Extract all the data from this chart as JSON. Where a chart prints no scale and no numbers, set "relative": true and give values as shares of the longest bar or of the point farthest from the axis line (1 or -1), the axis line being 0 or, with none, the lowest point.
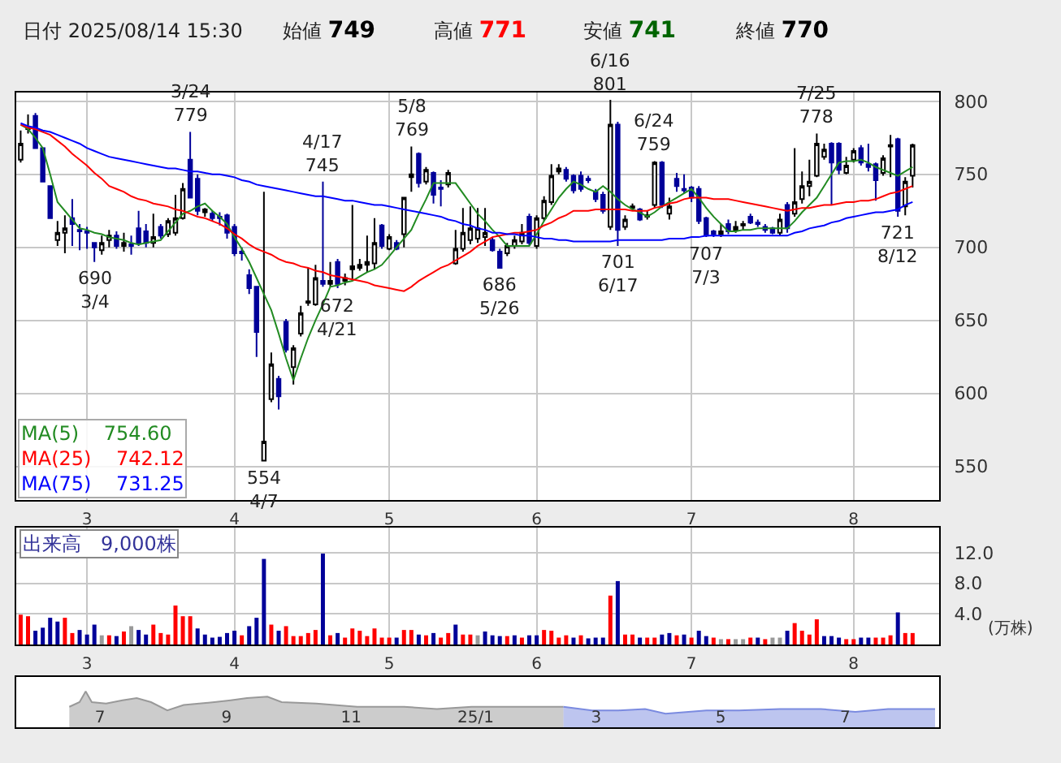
{
  "chart_data": [
    {
      "type": "candlestick",
      "categories": [
        null,
        null,
        null,
        null,
        null,
        null,
        null,
        null,
        null,
        "3",
        null,
        null,
        null,
        null,
        null,
        null,
        null,
        null,
        null,
        null,
        null,
        null,
        null,
        null,
        null,
        null,
        null,
        null,
        null,
        "4",
        null,
        null,
        null,
        null,
        null,
        null,
        null,
        null,
        null,
        null,
        null,
        null,
        null,
        null,
        null,
        null,
        null,
        null,
        null,
        null,
        "5",
        null,
        null,
        null,
        null,
        null,
        null,
        null,
        null,
        null,
        null,
        null,
        null,
        null,
        null,
        null,
        null,
        null,
        null,
        null,
        "6",
        null,
        null,
        null,
        null,
        null,
        null,
        null,
        null,
        null,
        null,
        null,
        null,
        null,
        null,
        null,
        null,
        null,
        null,
        null,
        null,
        "7",
        null,
        null,
        null,
        null,
        null,
        null,
        null,
        null,
        null,
        null,
        null,
        null,
        null,
        null,
        null,
        null,
        null,
        null,
        null,
        null,
        null,
        "8",
        null,
        null,
        null,
        null,
        null,
        null,
        null,
        null
      ],
      "ohlc": [
        [
          760,
          780,
          758,
          771
        ],
        [
          781,
          791,
          778,
          782
        ],
        [
          790,
          792,
          768,
          768
        ],
        [
          768,
          768,
          745,
          745
        ],
        [
          742,
          742,
          720,
          720
        ],
        [
          705,
          718,
          701,
          710
        ],
        [
          710,
          722,
          696,
          713
        ],
        [
          720,
          733,
          701,
          716
        ],
        [
          712,
          716,
          698,
          711
        ],
        [
          711,
          714,
          699,
          710
        ],
        [
          703,
          703,
          690,
          700
        ],
        [
          698,
          708,
          695,
          703
        ],
        [
          705,
          712,
          700,
          708
        ],
        [
          708,
          711,
          699,
          701
        ],
        [
          701,
          710,
          697,
          703
        ],
        [
          702,
          708,
          695,
          701
        ],
        [
          713,
          725,
          701,
          703
        ],
        [
          711,
          716,
          700,
          703
        ],
        [
          703,
          723,
          700,
          707
        ],
        [
          714,
          716,
          706,
          708
        ],
        [
          709,
          720,
          707,
          718
        ],
        [
          710,
          736,
          708,
          720
        ],
        [
          720,
          744,
          719,
          740
        ],
        [
          760,
          779,
          734,
          734
        ],
        [
          747,
          750,
          722,
          725
        ],
        [
          724,
          727,
          721,
          726
        ],
        [
          723,
          725,
          718,
          720
        ],
        [
          721,
          724,
          715,
          720
        ],
        [
          722,
          723,
          706,
          710
        ],
        [
          714,
          716,
          694,
          696
        ],
        [
          697,
          700,
          691,
          696
        ],
        [
          681,
          685,
          668,
          672
        ],
        [
          673,
          673,
          625,
          642
        ],
        [
          554,
          738,
          554,
          567
        ],
        [
          596,
          628,
          594,
          620
        ],
        [
          610,
          612,
          589,
          598
        ],
        [
          649,
          651,
          628,
          630
        ],
        [
          618,
          633,
          606,
          631
        ],
        [
          641,
          660,
          639,
          655
        ],
        [
          662,
          686,
          660,
          663
        ],
        [
          661,
          688,
          660,
          679
        ],
        [
          677,
          745,
          673,
          675
        ],
        [
          675,
          690,
          673,
          677
        ],
        [
          690,
          692,
          672,
          675
        ],
        [
          677,
          682,
          674,
          679
        ],
        [
          685,
          729,
          677,
          687
        ],
        [
          686,
          692,
          684,
          688
        ],
        [
          688,
          708,
          683,
          690
        ],
        [
          689,
          720,
          685,
          703
        ],
        [
          715,
          716,
          699,
          701
        ],
        [
          699,
          709,
          698,
          707
        ],
        [
          703,
          705,
          698,
          699
        ],
        [
          709,
          734,
          700,
          734
        ],
        [
          748,
          769,
          738,
          750
        ],
        [
          764,
          765,
          741,
          744
        ],
        [
          745,
          755,
          743,
          753
        ],
        [
          751,
          752,
          730,
          736
        ],
        [
          741,
          746,
          728,
          740
        ],
        [
          743,
          753,
          741,
          751
        ],
        [
          689,
          712,
          688,
          699
        ],
        [
          699,
          727,
          697,
          710
        ],
        [
          705,
          728,
          702,
          713
        ],
        [
          706,
          727,
          703,
          713
        ],
        [
          707,
          727,
          701,
          710
        ],
        [
          705,
          707,
          697,
          698
        ],
        [
          697,
          699,
          686,
          686
        ],
        [
          696,
          703,
          694,
          701
        ],
        [
          701,
          708,
          699,
          705
        ],
        [
          704,
          716,
          702,
          710
        ],
        [
          721,
          723,
          701,
          703
        ],
        [
          701,
          722,
          699,
          720
        ],
        [
          720,
          735,
          718,
          732
        ],
        [
          731,
          757,
          729,
          749
        ],
        [
          752,
          757,
          750,
          754
        ],
        [
          753,
          755,
          745,
          747
        ],
        [
          749,
          750,
          737,
          739
        ],
        [
          749,
          752,
          738,
          740
        ],
        [
          747,
          749,
          744,
          746
        ],
        [
          738,
          740,
          731,
          733
        ],
        [
          736,
          738,
          723,
          725
        ],
        [
          714,
          801,
          712,
          784
        ],
        [
          784,
          786,
          701,
          712
        ],
        [
          714,
          722,
          712,
          719
        ],
        [
          727,
          730,
          725,
          728
        ],
        [
          726,
          727,
          718,
          719
        ],
        [
          721,
          725,
          719,
          722
        ],
        [
          729,
          759,
          727,
          758
        ],
        [
          758,
          759,
          727,
          729
        ],
        [
          723,
          734,
          719,
          728
        ],
        [
          747,
          751,
          738,
          742
        ],
        [
          740,
          750,
          737,
          739
        ],
        [
          741,
          742,
          731,
          734
        ],
        [
          740,
          742,
          716,
          718
        ],
        [
          720,
          721,
          707,
          708
        ],
        [
          711,
          712,
          707,
          709
        ],
        [
          709,
          716,
          707,
          711
        ],
        [
          716,
          719,
          709,
          711
        ],
        [
          712,
          718,
          710,
          714
        ],
        [
          715,
          718,
          712,
          716
        ],
        [
          721,
          723,
          716,
          717
        ],
        [
          717,
          719,
          714,
          716
        ],
        [
          714,
          716,
          710,
          712
        ],
        [
          713,
          714,
          709,
          710
        ],
        [
          710,
          723,
          708,
          719
        ],
        [
          729,
          731,
          710,
          713
        ],
        [
          723,
          768,
          721,
          731
        ],
        [
          733,
          752,
          730,
          742
        ],
        [
          742,
          760,
          735,
          745
        ],
        [
          749,
          778,
          748,
          771
        ],
        [
          762,
          771,
          760,
          767
        ],
        [
          771,
          772,
          729,
          758
        ],
        [
          771,
          772,
          750,
          753
        ],
        [
          751,
          762,
          750,
          756
        ],
        [
          760,
          768,
          758,
          766
        ],
        [
          768,
          770,
          756,
          758
        ],
        [
          757,
          771,
          752,
          755
        ],
        [
          757,
          758,
          732,
          746
        ],
        [
          751,
          763,
          749,
          761
        ],
        [
          769,
          777,
          748,
          770
        ],
        [
          774,
          775,
          721,
          725
        ],
        [
          728,
          748,
          722,
          745
        ],
        [
          749,
          771,
          741,
          770
        ]
      ],
      "series": [
        {
          "name": "MA(5) 754.60",
          "type": "line",
          "color": "#228b22",
          "values": [
            784,
            781,
            775,
            768,
            750,
            731,
            725,
            719,
            713,
            712,
            710,
            709,
            707,
            706,
            705,
            703,
            702,
            703,
            704,
            705,
            711,
            717,
            723,
            725,
            728,
            730,
            725,
            721,
            716,
            707,
            699,
            690,
            679,
            668,
            657,
            641,
            624,
            609,
            624,
            638,
            650,
            661,
            673,
            674,
            676,
            677,
            680,
            683,
            685,
            688,
            694,
            700,
            706,
            712,
            723,
            733,
            744,
            744,
            744,
            744,
            737,
            730,
            723,
            718,
            712,
            707,
            701,
            701,
            701,
            701,
            709,
            718,
            726,
            734,
            740,
            745,
            743,
            740,
            738,
            742,
            738,
            733,
            729,
            726,
            724,
            721,
            724,
            728,
            731,
            734,
            737,
            740,
            734,
            727,
            721,
            716,
            711,
            711,
            712,
            712,
            713,
            713,
            713,
            713,
            713,
            718,
            724,
            729,
            734,
            742,
            750,
            758,
            759,
            759,
            760,
            758,
            755,
            753,
            751,
            749,
            752,
            755
          ]
        },
        {
          "name": "MA(25) 742.12",
          "type": "line",
          "color": "#ff0000",
          "values": [
            784,
            782,
            781,
            779,
            777,
            773,
            769,
            764,
            760,
            756,
            751,
            747,
            742,
            740,
            738,
            735,
            733,
            732,
            730,
            729,
            728,
            726,
            725,
            723,
            721,
            720,
            718,
            716,
            713,
            709,
            706,
            702,
            699,
            697,
            695,
            692,
            690,
            689,
            687,
            686,
            684,
            683,
            681,
            680,
            679,
            678,
            677,
            676,
            674,
            673,
            672,
            671,
            670,
            673,
            677,
            680,
            683,
            686,
            688,
            691,
            694,
            697,
            701,
            704,
            707,
            708,
            709,
            710,
            710,
            711,
            712,
            715,
            717,
            720,
            722,
            725,
            725,
            725,
            726,
            726,
            726,
            726,
            726,
            725,
            725,
            725,
            727,
            728,
            730,
            731,
            733,
            734,
            734,
            734,
            733,
            733,
            733,
            732,
            731,
            730,
            729,
            728,
            727,
            726,
            725,
            726,
            727,
            727,
            728,
            729,
            729,
            730,
            731,
            731,
            732,
            732,
            733,
            735,
            737,
            738,
            740,
            742
          ]
        },
        {
          "name": "MA(75) 731.25",
          "type": "line",
          "color": "#0000ff",
          "values": [
            785,
            783,
            782,
            780,
            779,
            777,
            775,
            773,
            771,
            768,
            766,
            764,
            762,
            761,
            760,
            759,
            758,
            757,
            756,
            755,
            754,
            754,
            753,
            752,
            752,
            751,
            750,
            750,
            749,
            748,
            746,
            745,
            743,
            742,
            741,
            740,
            739,
            738,
            737,
            736,
            735,
            735,
            734,
            733,
            732,
            732,
            731,
            730,
            729,
            729,
            728,
            727,
            726,
            725,
            724,
            723,
            722,
            721,
            719,
            718,
            716,
            715,
            713,
            712,
            710,
            710,
            709,
            709,
            708,
            708,
            707,
            706,
            706,
            705,
            705,
            704,
            704,
            704,
            704,
            704,
            704,
            705,
            705,
            705,
            705,
            705,
            705,
            705,
            706,
            706,
            706,
            707,
            707,
            708,
            708,
            708,
            708,
            708,
            708,
            708,
            708,
            708,
            708,
            708,
            708,
            710,
            711,
            713,
            714,
            715,
            717,
            718,
            720,
            721,
            722,
            723,
            724,
            724,
            725,
            726,
            729,
            731
          ]
        }
      ],
      "ylim": [
        527,
        806
      ],
      "yticks": [
        550,
        600,
        650,
        700,
        750,
        800
      ],
      "grid": true,
      "legend": "bottom left",
      "annotations": [
        "日付 2025/08/14 15:30",
        "始値 749",
        "高値 771",
        "安値 741",
        "終値 770",
        {
          "text": "3/24\n779",
          "y": 779
        },
        {
          "text": "690\n3/4",
          "y": 690
        },
        {
          "text": "554\n4/7",
          "y": 554
        },
        {
          "text": "4/17\n745",
          "y": 745
        },
        {
          "text": "672\n4/21",
          "y": 672
        },
        {
          "text": "5/8\n769",
          "y": 769
        },
        {
          "text": "686\n5/26",
          "y": 686
        },
        {
          "text": "6/16\n801",
          "y": 801
        },
        {
          "text": "701\n6/17",
          "y": 701
        },
        {
          "text": "6/24\n759",
          "y": 759
        },
        {
          "text": "707\n7/3",
          "y": 707
        },
        {
          "text": "7/25\n778",
          "y": 778
        },
        {
          "text": "721\n8/12",
          "y": 721
        }
      ]
    },
    {
      "type": "bar",
      "categories": [
        null,
        null,
        null,
        null,
        null,
        null,
        null,
        null,
        null,
        "3",
        null,
        null,
        null,
        null,
        null,
        null,
        null,
        null,
        null,
        null,
        null,
        null,
        null,
        null,
        null,
        null,
        null,
        null,
        null,
        "4",
        null,
        null,
        null,
        null,
        null,
        null,
        null,
        null,
        null,
        null,
        null,
        null,
        null,
        null,
        null,
        null,
        null,
        null,
        null,
        null,
        "5",
        null,
        null,
        null,
        null,
        null,
        null,
        null,
        null,
        null,
        null,
        null,
        null,
        null,
        null,
        null,
        null,
        null,
        null,
        null,
        "6",
        null,
        null,
        null,
        null,
        null,
        null,
        null,
        null,
        null,
        null,
        null,
        null,
        null,
        null,
        null,
        null,
        null,
        null,
        null,
        null,
        "7",
        null,
        null,
        null,
        null,
        null,
        null,
        null,
        null,
        null,
        null,
        null,
        null,
        null,
        null,
        null,
        null,
        null,
        null,
        null,
        null,
        null,
        "8",
        null,
        null,
        null,
        null,
        null,
        null,
        null,
        null
      ],
      "values": [
        3.9,
        3.7,
        1.8,
        2.2,
        3.5,
        3.0,
        3.5,
        1.5,
        1.9,
        1.3,
        2.6,
        1.2,
        1.2,
        1.1,
        1.7,
        2.4,
        1.9,
        1.3,
        2.6,
        1.5,
        1.3,
        5.1,
        3.7,
        3.7,
        2.1,
        1.3,
        0.9,
        1.0,
        1.5,
        1.8,
        1.2,
        2.4,
        3.5,
        11.2,
        2.6,
        1.8,
        2.4,
        1.1,
        1.1,
        1.5,
        1.9,
        11.9,
        1.2,
        1.5,
        0.9,
        2.1,
        1.8,
        1.1,
        2.1,
        0.9,
        0.9,
        0.9,
        1.9,
        1.9,
        1.3,
        1.2,
        1.5,
        0.9,
        1.5,
        2.6,
        1.3,
        1.3,
        1.2,
        1.7,
        1.2,
        1.1,
        1.1,
        1.2,
        0.9,
        1.2,
        1.2,
        1.9,
        1.8,
        0.9,
        1.2,
        0.9,
        1.2,
        0.8,
        0.9,
        0.9,
        6.4,
        8.3,
        1.3,
        1.3,
        0.9,
        0.9,
        0.9,
        1.3,
        1.5,
        1.2,
        1.3,
        0.9,
        1.8,
        1.1,
        0.9,
        0.7,
        0.7,
        0.7,
        0.7,
        0.9,
        0.9,
        0.7,
        0.9,
        0.9,
        1.8,
        2.8,
        1.8,
        1.3,
        3.3,
        1.1,
        1.1,
        0.9,
        0.7,
        0.7,
        0.9,
        0.9,
        0.9,
        0.9,
        1.2,
        4.2,
        1.5,
        1.5
      ],
      "colors": [
        "#ff0000",
        "#ff0000",
        "#000099",
        "#000099",
        "#000099",
        "#000099",
        "#ff0000",
        "#ff0000",
        "#000099",
        "#000099",
        "#000099",
        "#999999",
        "#ff0000",
        "#000099",
        "#ff0000",
        "#999999",
        "#000099",
        "#000099",
        "#ff0000",
        "#ff0000",
        "#ff0000",
        "#ff0000",
        "#ff0000",
        "#ff0000",
        "#000099",
        "#000099",
        "#000099",
        "#000099",
        "#000099",
        "#000099",
        "#ff0000",
        "#000099",
        "#000099",
        "#000099",
        "#ff0000",
        "#000099",
        "#ff0000",
        "#ff0000",
        "#ff0000",
        "#ff0000",
        "#ff0000",
        "#000099",
        "#ff0000",
        "#000099",
        "#ff0000",
        "#ff0000",
        "#ff0000",
        "#ff0000",
        "#ff0000",
        "#ff0000",
        "#ff0000",
        "#000099",
        "#ff0000",
        "#ff0000",
        "#000099",
        "#ff0000",
        "#000099",
        "#ff0000",
        "#ff0000",
        "#000099",
        "#ff0000",
        "#ff0000",
        "#999999",
        "#000099",
        "#000099",
        "#000099",
        "#ff0000",
        "#000099",
        "#ff0000",
        "#000099",
        "#000099",
        "#ff0000",
        "#ff0000",
        "#ff0000",
        "#ff0000",
        "#000099",
        "#ff0000",
        "#000099",
        "#000099",
        "#000099",
        "#ff0000",
        "#000099",
        "#ff0000",
        "#ff0000",
        "#000099",
        "#ff0000",
        "#ff0000",
        "#000099",
        "#000099",
        "#ff0000",
        "#000099",
        "#ff0000",
        "#000099",
        "#000099",
        "#ff0000",
        "#999999",
        "#ff0000",
        "#999999",
        "#999999",
        "#ff0000",
        "#000099",
        "#ff0000",
        "#999999",
        "#999999",
        "#000099",
        "#ff0000",
        "#ff0000",
        "#ff0000",
        "#ff0000",
        "#000099",
        "#000099",
        "#000099",
        "#ff0000",
        "#ff0000",
        "#000099",
        "#000099",
        "#ff0000",
        "#ff0000",
        "#ff0000",
        "#000099",
        "#ff0000",
        "#ff0000"
      ],
      "ylim": [
        0,
        15.3
      ],
      "yticks": [
        {
          "value": 4,
          "label": "4.0"
        },
        {
          "value": 8,
          "label": "8.0"
        },
        {
          "value": 12,
          "label": "12.0"
        }
      ],
      "ylabel": "(万株)",
      "grid": true,
      "annotations": [
        "出来高　9,000株"
      ]
    },
    {
      "type": "area",
      "relative": true,
      "tick_labels": "x",
      "series": [
        {
          "type": "area",
          "color": "#999999",
          "x": [
            "2024-06-16",
            "2024-06-21",
            "2024-06-24",
            "2024-06-27",
            "2024-07-04",
            "2024-07-12",
            "2024-07-19",
            "2024-07-26",
            "2024-08-03",
            "2024-08-11",
            "2024-08-26",
            "2024-09-03",
            "2024-09-11",
            "2024-09-21",
            "2024-09-28",
            "2024-10-15",
            "2024-11-04",
            "2024-11-27",
            "2024-12-13",
            "2024-12-30",
            "2025-01-15",
            "2025-02-01",
            "2025-02-13"
          ],
          "values": [
            0.57,
            0.7,
            1.0,
            0.7,
            0.66,
            0.75,
            0.81,
            0.7,
            0.47,
            0.62,
            0.7,
            0.75,
            0.81,
            0.85,
            0.7,
            0.66,
            0.57,
            0.57,
            0.51,
            0.57,
            0.57,
            0.57,
            0.57
          ]
        },
        {
          "type": "area",
          "color": "#7b8be0",
          "x": [
            "2025-02-13",
            "2025-02-27",
            "2025-03-12",
            "2025-03-25",
            "2025-04-04",
            "2025-04-24",
            "2025-05-10",
            "2025-05-30",
            "2025-06-19",
            "2025-07-06",
            "2025-07-22",
            "2025-08-14"
          ],
          "values": [
            0.57,
            0.47,
            0.47,
            0.51,
            0.38,
            0.47,
            0.47,
            0.51,
            0.51,
            0.43,
            0.51,
            0.51
          ]
        }
      ],
      "xlim": [
        "2024-05-21",
        "2025-08-16"
      ],
      "xticks": [
        {
          "value": "2024-07-01",
          "label": "7"
        },
        {
          "value": "2024-09-01",
          "label": "9"
        },
        {
          "value": "2024-11-01",
          "label": "11"
        },
        {
          "value": "2025-01-01",
          "label": "25/1"
        },
        {
          "value": "2025-03-01",
          "label": "3"
        },
        {
          "value": "2025-05-01",
          "label": "5"
        },
        {
          "value": "2025-07-01",
          "label": "7"
        }
      ]
    }
  ]
}
